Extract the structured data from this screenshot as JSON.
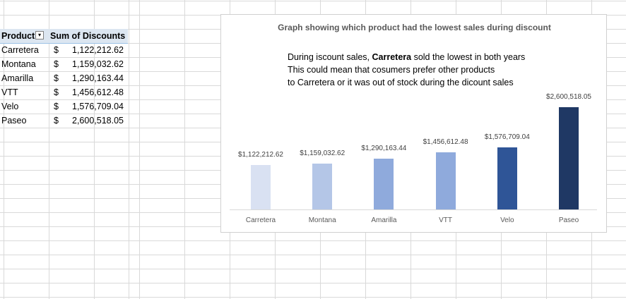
{
  "pivot": {
    "header_product": "Product",
    "header_sum": "Sum of Discounts",
    "filter_icon": "sort-filter-icon",
    "rows": [
      {
        "product": "Carretera",
        "currency": "$",
        "amount": "1,122,212.62"
      },
      {
        "product": "Montana",
        "currency": "$",
        "amount": "1,159,032.62"
      },
      {
        "product": "Amarilla",
        "currency": "$",
        "amount": "1,290,163.44"
      },
      {
        "product": "VTT",
        "currency": "$",
        "amount": "1,456,612.48"
      },
      {
        "product": "Velo",
        "currency": "$",
        "amount": "1,576,709.04"
      },
      {
        "product": "Paseo",
        "currency": "$",
        "amount": "2,600,518.05"
      }
    ]
  },
  "chart": {
    "title": "Graph showing which product had the lowest sales during discount",
    "note_line1_pre": "During iscount sales, ",
    "note_line1_bold": "Carretera",
    "note_line1_post": " sold the lowest in both years",
    "note_line2": "This  could mean that cosumers prefer other products",
    "note_line3": "to Carretera or it was out of stock during the dicount sales"
  },
  "chart_data": {
    "type": "bar",
    "title": "Graph showing which product had the lowest sales during discount",
    "xlabel": "",
    "ylabel": "",
    "categories": [
      "Carretera",
      "Montana",
      "Amarilla",
      "VTT",
      "Velo",
      "Paseo"
    ],
    "values": [
      1122212.62,
      1159032.62,
      1290163.44,
      1456612.48,
      1576709.04,
      2600518.05
    ],
    "data_labels": [
      "$1,122,212.62",
      "$1,159,032.62",
      "$1,290,163.44",
      "$1,456,612.48",
      "$1,576,709.04",
      "$2,600,518.05"
    ],
    "colors": [
      "#d9e1f2",
      "#b4c6e7",
      "#8faadc",
      "#8faadc",
      "#2f5597",
      "#1f3864"
    ],
    "ylim": [
      0,
      2600518.05
    ],
    "grid": false,
    "legend": "none"
  }
}
